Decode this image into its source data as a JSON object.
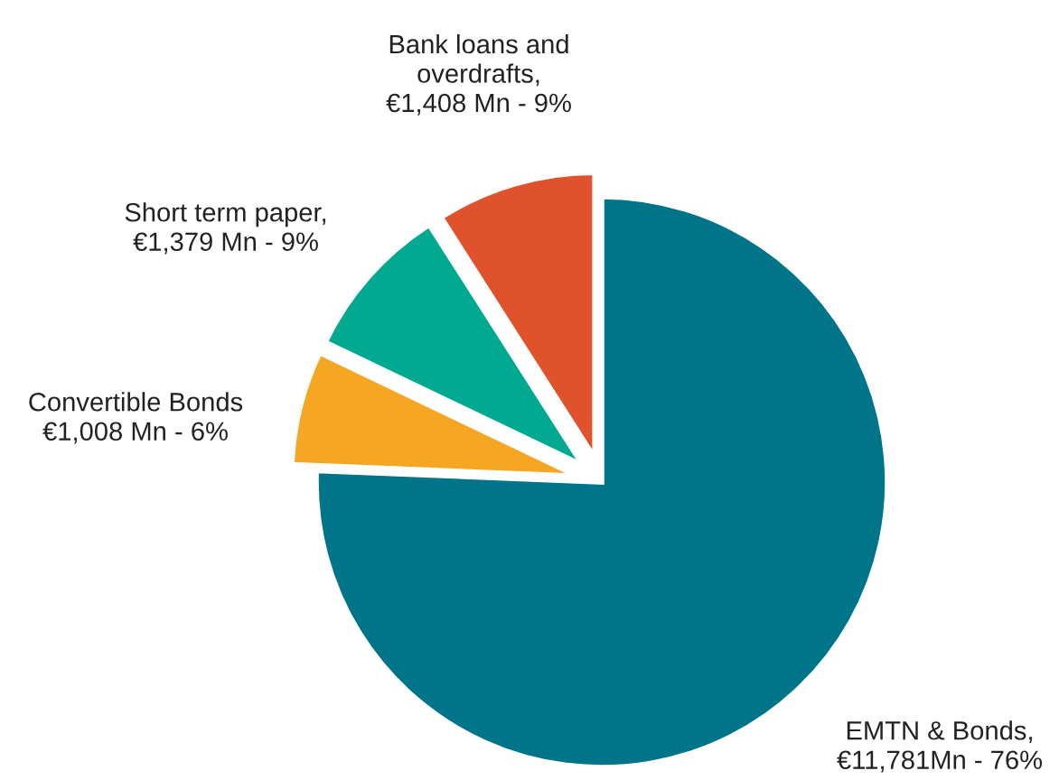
{
  "chart_data": {
    "type": "pie",
    "categories": [
      "EMTN & Bonds,\n€11,781Mn - 76%",
      "Convertible Bonds\n€1,008 Mn - 6%",
      "Short term paper,\n€1,379 Mn - 9%",
      "Bank loans and\noverdrafts,\n€1,408 Mn - 9%"
    ],
    "values": [
      11781,
      1008,
      1379,
      1408
    ],
    "colors": [
      "#007489",
      "#f5a623",
      "#00a98f",
      "#e0522b"
    ]
  }
}
